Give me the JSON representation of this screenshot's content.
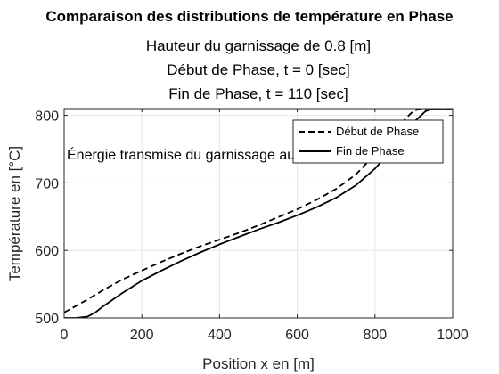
{
  "chart_data": {
    "type": "line",
    "title": "Comparaison des distributions de température en Phase",
    "subtitles": [
      "Hauteur du garnissage de 0.8 [m]",
      "Début de Phase, t = 0 [sec]",
      "Fin de Phase, t = 110 [sec]"
    ],
    "xlabel": "Position x en [m]",
    "ylabel": "Température en [°C]",
    "xlim": [
      0,
      1000
    ],
    "ylim": [
      500,
      810
    ],
    "xticks": [
      0,
      200,
      400,
      600,
      800,
      1000
    ],
    "yticks": [
      500,
      600,
      700,
      800
    ],
    "grid": true,
    "legend_position": "top-right",
    "annotation": "Énergie transmise du garnissage au gaz : 8.7879 [",
    "series": [
      {
        "name": "Début de Phase",
        "style": "dashed",
        "color": "#000000",
        "x": [
          0,
          50,
          100,
          150,
          200,
          250,
          300,
          350,
          400,
          450,
          500,
          550,
          600,
          650,
          700,
          750,
          800,
          850,
          880,
          900,
          920,
          950,
          1000
        ],
        "y": [
          508,
          524,
          541,
          557,
          570,
          583,
          595,
          606,
          616,
          626,
          637,
          649,
          661,
          675,
          691,
          712,
          742,
          776,
          796,
          807,
          810,
          810,
          810
        ]
      },
      {
        "name": "Fin de Phase",
        "style": "solid",
        "color": "#000000",
        "x": [
          0,
          30,
          60,
          80,
          100,
          150,
          200,
          250,
          300,
          350,
          400,
          450,
          500,
          550,
          600,
          650,
          700,
          750,
          800,
          850,
          900,
          930,
          950,
          1000
        ],
        "y": [
          500,
          500,
          502,
          508,
          517,
          537,
          555,
          570,
          584,
          597,
          609,
          620,
          631,
          641,
          652,
          664,
          678,
          696,
          721,
          753,
          790,
          806,
          810,
          810
        ]
      }
    ]
  }
}
